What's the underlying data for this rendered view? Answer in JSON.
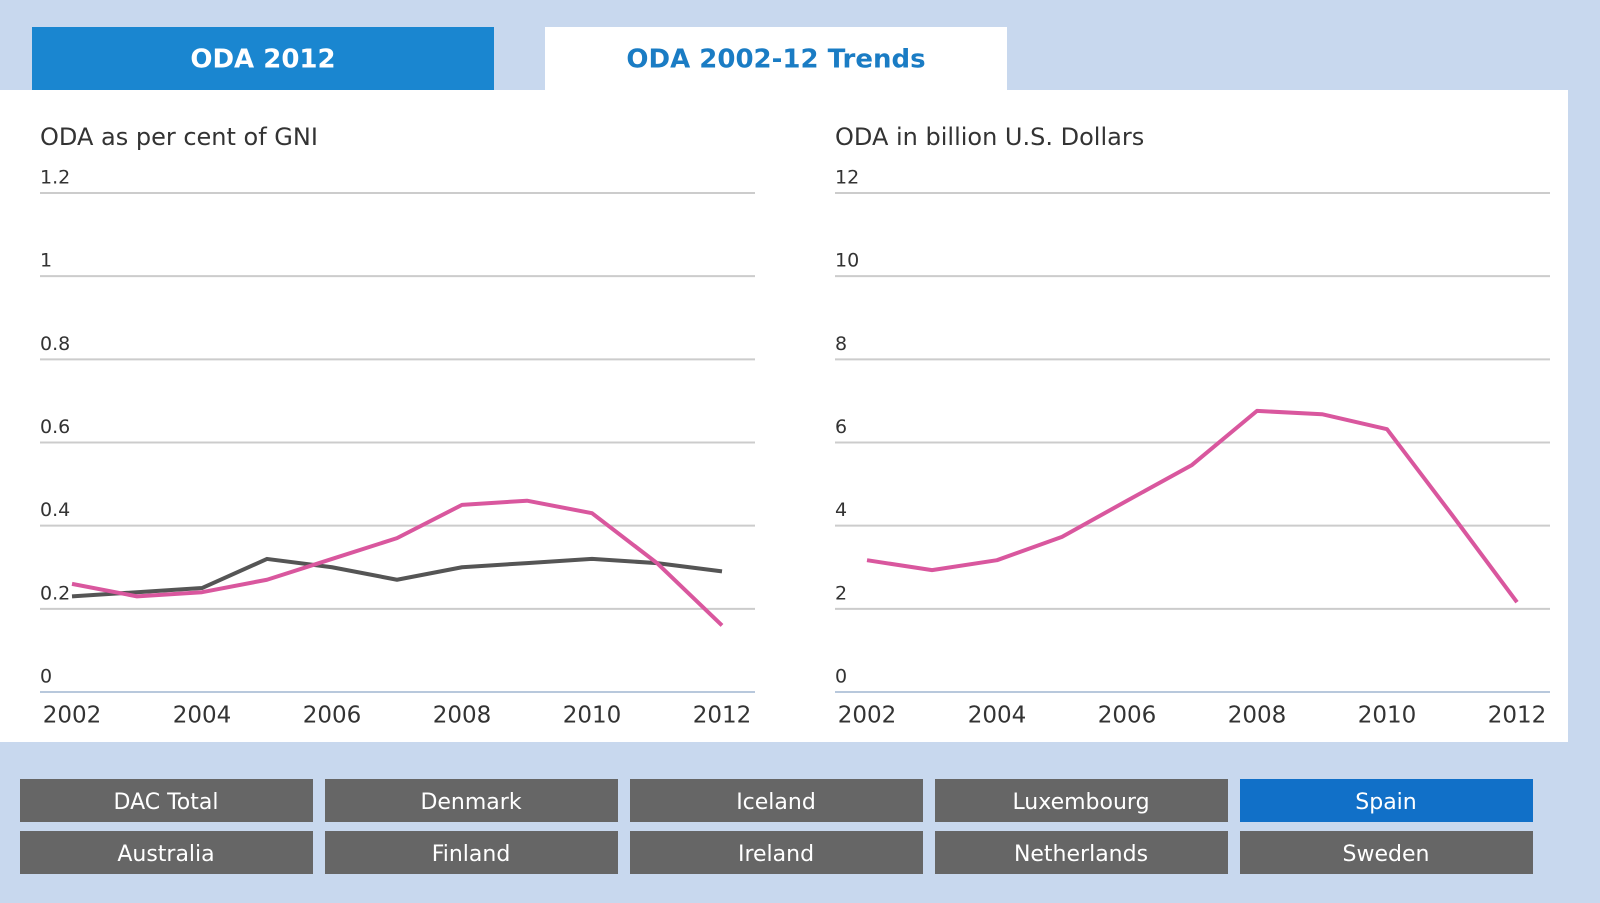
{
  "tabs": [
    {
      "label": "ODA 2012",
      "active": true
    },
    {
      "label": "ODA 2002-12 Trends",
      "active": false
    }
  ],
  "chart_data": [
    {
      "type": "line",
      "title": "ODA as per cent of GNI",
      "x": [
        2002,
        2003,
        2004,
        2005,
        2006,
        2007,
        2008,
        2009,
        2010,
        2011,
        2012
      ],
      "series": [
        {
          "color": "#555555",
          "values": [
            0.23,
            0.24,
            0.25,
            0.32,
            0.3,
            0.27,
            0.3,
            0.31,
            0.32,
            0.31,
            0.29
          ]
        },
        {
          "color": "#d9579e",
          "values": [
            0.26,
            0.23,
            0.24,
            0.27,
            0.32,
            0.37,
            0.45,
            0.46,
            0.43,
            0.31,
            0.16
          ]
        }
      ],
      "xlim": [
        2002,
        2012
      ],
      "xticks": [
        2002,
        2004,
        2006,
        2008,
        2010,
        2012
      ],
      "ylim": [
        0,
        1.2
      ],
      "yticks": [
        0,
        0.2,
        0.4,
        0.6,
        0.8,
        1,
        1.2
      ],
      "grid": true
    },
    {
      "type": "line",
      "title": "ODA in billion U.S. Dollars",
      "x": [
        2002,
        2003,
        2004,
        2005,
        2006,
        2007,
        2008,
        2009,
        2010,
        2011,
        2012
      ],
      "series": [
        {
          "color": "#d9579e",
          "values": [
            3.17,
            2.93,
            3.17,
            3.73,
            4.6,
            5.46,
            6.76,
            6.68,
            6.32,
            4.26,
            2.16
          ]
        }
      ],
      "xlim": [
        2002,
        2012
      ],
      "xticks": [
        2002,
        2004,
        2006,
        2008,
        2010,
        2012
      ],
      "ylim": [
        0,
        12
      ],
      "yticks": [
        0,
        2,
        4,
        6,
        8,
        10,
        12
      ],
      "grid": true
    }
  ],
  "buttons": [
    [
      {
        "label": "DAC Total",
        "selected": false
      },
      {
        "label": "Denmark",
        "selected": false
      },
      {
        "label": "Iceland",
        "selected": false
      },
      {
        "label": "Luxembourg",
        "selected": false
      },
      {
        "label": "Spain",
        "selected": true
      }
    ],
    [
      {
        "label": "Australia",
        "selected": false
      },
      {
        "label": "Finland",
        "selected": false
      },
      {
        "label": "Ireland",
        "selected": false
      },
      {
        "label": "Netherlands",
        "selected": false
      },
      {
        "label": "Sweden",
        "selected": false
      }
    ]
  ]
}
